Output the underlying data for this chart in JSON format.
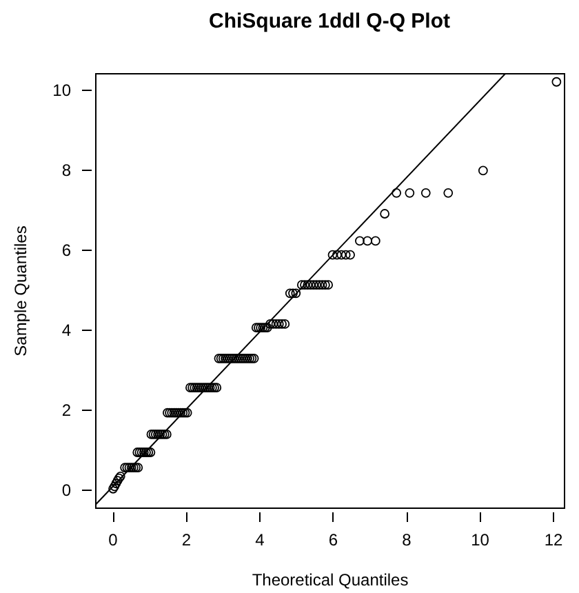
{
  "chart_data": {
    "type": "scatter",
    "title": "ChiSquare 1ddl Q-Q Plot",
    "xlabel": "Theoretical Quantiles",
    "ylabel": "Sample Quantiles",
    "xlim": [
      -0.47,
      12.3
    ],
    "ylim": [
      -0.45,
      10.42
    ],
    "xticks": [
      0,
      2,
      4,
      6,
      8,
      10,
      12
    ],
    "yticks": [
      0,
      2,
      4,
      6,
      8,
      10
    ],
    "marker": "circle",
    "series": [
      {
        "color": "#000000",
        "x": [
          0.02,
          0.06,
          0.1,
          0.14,
          0.18,
          0.22,
          0.34,
          0.4,
          0.46,
          0.52,
          0.58,
          0.64,
          0.7,
          0.68,
          0.74,
          0.8,
          0.86,
          0.92,
          0.98,
          1.04,
          1.06,
          1.12,
          1.18,
          1.24,
          1.3,
          1.36,
          1.42,
          1.48,
          1.5,
          1.56,
          1.62,
          1.68,
          1.74,
          1.8,
          1.86,
          1.92,
          1.98,
          2.04,
          2.12,
          2.18,
          2.24,
          2.3,
          2.36,
          2.42,
          2.48,
          2.54,
          2.6,
          2.66,
          2.72,
          2.78,
          2.84,
          2.9,
          2.96,
          3.02,
          3.08,
          3.14,
          3.2,
          3.26,
          3.32,
          3.38,
          3.44,
          3.5,
          3.56,
          3.62,
          3.68,
          3.74,
          3.8,
          3.86,
          3.92,
          3.98,
          4.04,
          4.1,
          4.16,
          4.22,
          4.3,
          4.38,
          4.46,
          4.54,
          4.62,
          4.7,
          4.84,
          4.92,
          5.0,
          5.16,
          5.24,
          5.32,
          5.4,
          5.48,
          5.56,
          5.64,
          5.72,
          5.8,
          5.88,
          6.0,
          6.12,
          6.24,
          6.36,
          6.48,
          6.74,
          6.95,
          7.17,
          7.42,
          7.74,
          8.1,
          8.54,
          9.15,
          10.1,
          12.1
        ],
        "values": [
          0.02,
          0.08,
          0.15,
          0.22,
          0.28,
          0.33,
          0.55,
          0.55,
          0.55,
          0.55,
          0.55,
          0.55,
          0.55,
          0.93,
          0.93,
          0.93,
          0.93,
          0.93,
          0.93,
          0.93,
          1.38,
          1.38,
          1.38,
          1.38,
          1.38,
          1.38,
          1.38,
          1.38,
          1.92,
          1.92,
          1.92,
          1.92,
          1.92,
          1.92,
          1.92,
          1.92,
          1.92,
          1.92,
          2.55,
          2.55,
          2.55,
          2.55,
          2.55,
          2.55,
          2.55,
          2.55,
          2.55,
          2.55,
          2.55,
          2.55,
          2.55,
          3.28,
          3.28,
          3.28,
          3.28,
          3.28,
          3.28,
          3.28,
          3.28,
          3.28,
          3.28,
          3.28,
          3.28,
          3.28,
          3.28,
          3.28,
          3.28,
          3.28,
          4.05,
          4.05,
          4.05,
          4.05,
          4.05,
          4.05,
          4.14,
          4.14,
          4.14,
          4.14,
          4.14,
          4.14,
          4.91,
          4.91,
          4.91,
          5.12,
          5.12,
          5.12,
          5.12,
          5.12,
          5.12,
          5.12,
          5.12,
          5.12,
          5.12,
          5.87,
          5.87,
          5.87,
          5.87,
          5.87,
          6.22,
          6.22,
          6.22,
          6.9,
          7.42,
          7.42,
          7.42,
          7.42,
          7.98,
          10.2
        ]
      },
      {
        "type": "line",
        "marker": "none",
        "color": "#000000",
        "x": [
          -0.46,
          10.72
        ],
        "values": [
          -0.38,
          10.42
        ]
      }
    ]
  }
}
